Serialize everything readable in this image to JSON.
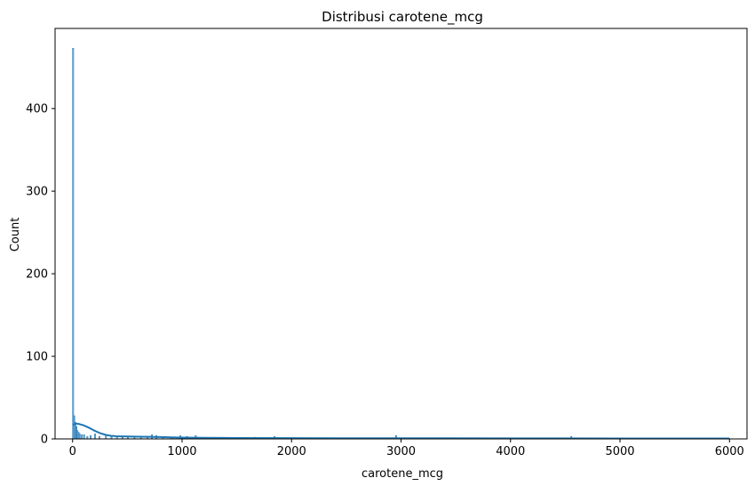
{
  "chart_data": {
    "type": "histogram",
    "title": "Distribusi carotene_mcg",
    "xlabel": "carotene_mcg",
    "ylabel": "Count",
    "xlim": [
      -160,
      6160
    ],
    "ylim": [
      0,
      497
    ],
    "xticks": [
      0,
      1000,
      2000,
      3000,
      4000,
      5000,
      6000
    ],
    "yticks": [
      0,
      100,
      200,
      300,
      400
    ],
    "grid": false,
    "bar_color": "#1f77b4",
    "bar_opacity": 0.5,
    "kde_color": "#1f77b4",
    "bins": [
      {
        "x": 0,
        "count": 473
      },
      {
        "x": 10,
        "count": 28
      },
      {
        "x": 20,
        "count": 20
      },
      {
        "x": 30,
        "count": 15
      },
      {
        "x": 40,
        "count": 10
      },
      {
        "x": 50,
        "count": 8
      },
      {
        "x": 60,
        "count": 6
      },
      {
        "x": 80,
        "count": 5
      },
      {
        "x": 100,
        "count": 5
      },
      {
        "x": 130,
        "count": 3
      },
      {
        "x": 160,
        "count": 4
      },
      {
        "x": 200,
        "count": 6
      },
      {
        "x": 240,
        "count": 3
      },
      {
        "x": 300,
        "count": 5
      },
      {
        "x": 350,
        "count": 3
      },
      {
        "x": 400,
        "count": 3
      },
      {
        "x": 450,
        "count": 2
      },
      {
        "x": 500,
        "count": 3
      },
      {
        "x": 560,
        "count": 3
      },
      {
        "x": 620,
        "count": 2
      },
      {
        "x": 680,
        "count": 3
      },
      {
        "x": 720,
        "count": 5
      },
      {
        "x": 760,
        "count": 4
      },
      {
        "x": 820,
        "count": 2
      },
      {
        "x": 900,
        "count": 2
      },
      {
        "x": 980,
        "count": 4
      },
      {
        "x": 1040,
        "count": 3
      },
      {
        "x": 1120,
        "count": 4
      },
      {
        "x": 1660,
        "count": 2
      },
      {
        "x": 1840,
        "count": 3
      },
      {
        "x": 2950,
        "count": 4
      },
      {
        "x": 4550,
        "count": 3
      }
    ],
    "kde": [
      {
        "x": 0,
        "y": 17
      },
      {
        "x": 30,
        "y": 18.5
      },
      {
        "x": 60,
        "y": 18
      },
      {
        "x": 100,
        "y": 16.5
      },
      {
        "x": 150,
        "y": 13.5
      },
      {
        "x": 200,
        "y": 10
      },
      {
        "x": 250,
        "y": 7
      },
      {
        "x": 300,
        "y": 5
      },
      {
        "x": 350,
        "y": 3.8
      },
      {
        "x": 400,
        "y": 3.2
      },
      {
        "x": 500,
        "y": 2.9
      },
      {
        "x": 600,
        "y": 2.7
      },
      {
        "x": 700,
        "y": 2.6
      },
      {
        "x": 800,
        "y": 2.3
      },
      {
        "x": 900,
        "y": 1.9
      },
      {
        "x": 1000,
        "y": 1.6
      },
      {
        "x": 1200,
        "y": 1.3
      },
      {
        "x": 1500,
        "y": 1.1
      },
      {
        "x": 2000,
        "y": 0.9
      },
      {
        "x": 3000,
        "y": 0.8
      },
      {
        "x": 4000,
        "y": 0.7
      },
      {
        "x": 5000,
        "y": 0.6
      },
      {
        "x": 6000,
        "y": 0.5
      }
    ]
  }
}
